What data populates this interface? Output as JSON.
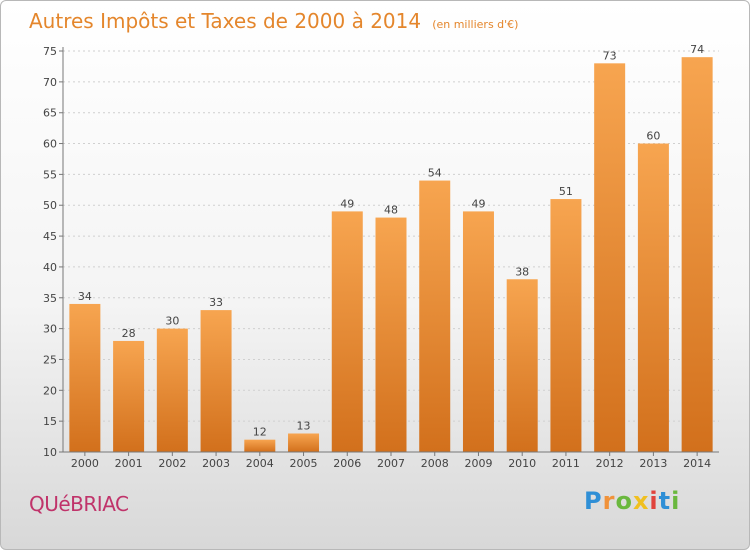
{
  "chart_data": {
    "type": "bar",
    "title": "Autres Impôts et Taxes de 2000 à 2014",
    "subtitle": "(en milliers d'€)",
    "categories": [
      "2000",
      "2001",
      "2002",
      "2003",
      "2004",
      "2005",
      "2006",
      "2007",
      "2008",
      "2009",
      "2010",
      "2011",
      "2012",
      "2013",
      "2014"
    ],
    "values": [
      34,
      28,
      30,
      33,
      12,
      13,
      49,
      48,
      54,
      49,
      38,
      51,
      73,
      60,
      74
    ],
    "ylim": [
      10,
      75
    ],
    "yticks": [
      10,
      15,
      20,
      25,
      30,
      35,
      40,
      45,
      50,
      55,
      60,
      65,
      70,
      75
    ],
    "grid": true,
    "bar_color": "#f0923a"
  },
  "place_name": "QUéBRIAC",
  "brand": {
    "letters": [
      "P",
      "r",
      "o",
      "x",
      "i",
      "t",
      "i"
    ],
    "colors": [
      "#2f8fd6",
      "#f0923a",
      "#6ab83e",
      "#f0c020",
      "#e0433c",
      "#2f8fd6",
      "#6ab83e"
    ]
  }
}
